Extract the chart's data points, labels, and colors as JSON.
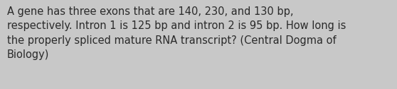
{
  "text": "A gene has three exons that are 140, 230, and 130 bp,\nrespectively. Intron 1 is 125 bp and intron 2 is 95 bp. How long is\nthe properly spliced mature RNA transcript? (Central Dogma of\nBiology)",
  "background_color": "#c8c8c8",
  "text_color": "#2a2a2a",
  "font_size": 10.5,
  "fig_width": 5.58,
  "fig_height": 1.26,
  "dpi": 100
}
